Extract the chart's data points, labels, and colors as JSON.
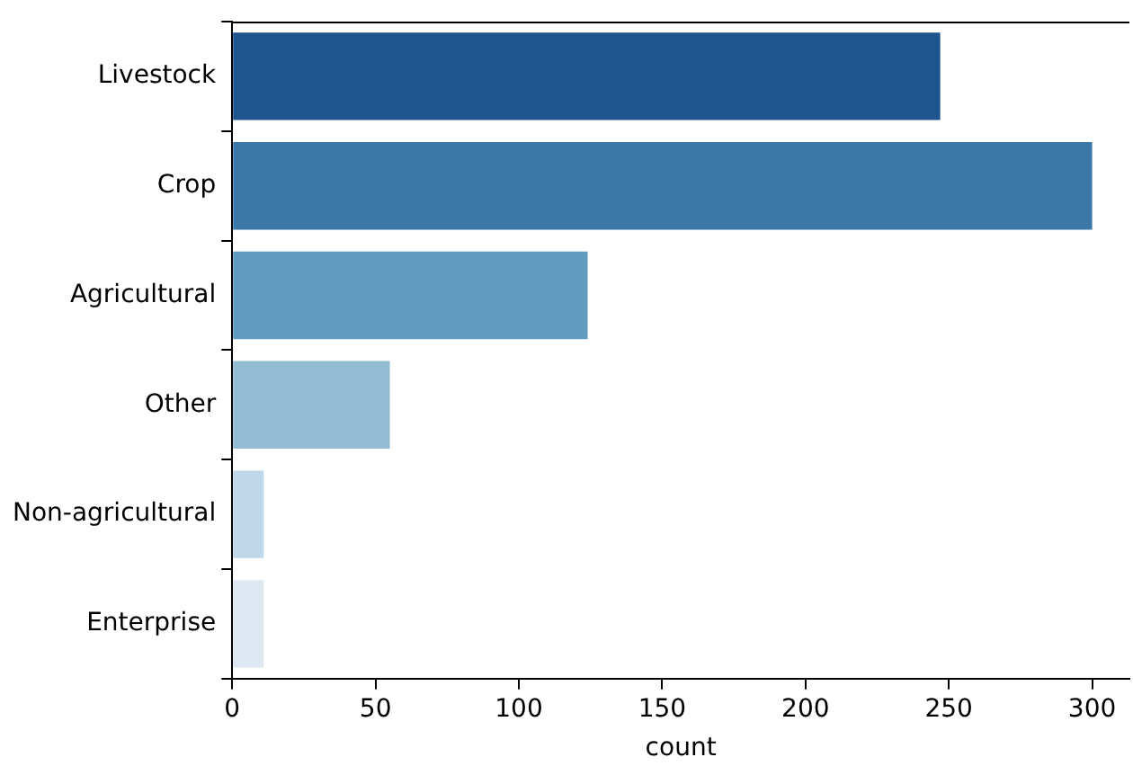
{
  "chart_data": {
    "type": "bar",
    "orientation": "horizontal",
    "xlabel": "count",
    "categories": [
      "Livestock",
      "Crop",
      "Agricultural",
      "Other",
      "Non-agricultural",
      "Enterprise"
    ],
    "values": [
      247,
      300,
      124,
      55,
      11,
      11
    ],
    "colors": [
      "#1f558c",
      "#3b78a8",
      "#629bc0",
      "#94bcd4",
      "#c0d6e9",
      "#dde8f3"
    ],
    "xlim": [
      0,
      313
    ],
    "xticks": [
      0,
      50,
      100,
      150,
      200,
      250,
      300
    ],
    "grid": false,
    "legend": false
  }
}
